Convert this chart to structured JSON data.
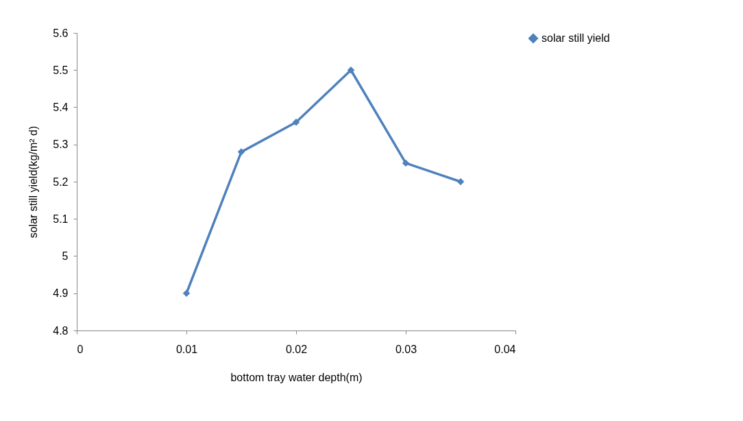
{
  "chart_data": {
    "type": "line",
    "xlabel": "bottom tray water depth(m)",
    "ylabel": "solar still yield(kg/m² d)",
    "x": [
      0.01,
      0.015,
      0.02,
      0.025,
      0.03,
      0.035
    ],
    "series": [
      {
        "name": "solar still yield",
        "color": "#4f81bd",
        "values": [
          4.9,
          5.28,
          5.36,
          5.5,
          5.25,
          5.2
        ]
      }
    ],
    "xlim": [
      0,
      0.04
    ],
    "xticks": [
      0,
      0.01,
      0.02,
      0.03,
      0.04
    ],
    "ylim": [
      4.8,
      5.6
    ],
    "yticks": [
      4.8,
      4.9,
      5,
      5.1,
      5.2,
      5.3,
      5.4,
      5.5,
      5.6
    ],
    "grid": false,
    "legend": "right",
    "marker": "diamond",
    "line_style": "solid"
  }
}
